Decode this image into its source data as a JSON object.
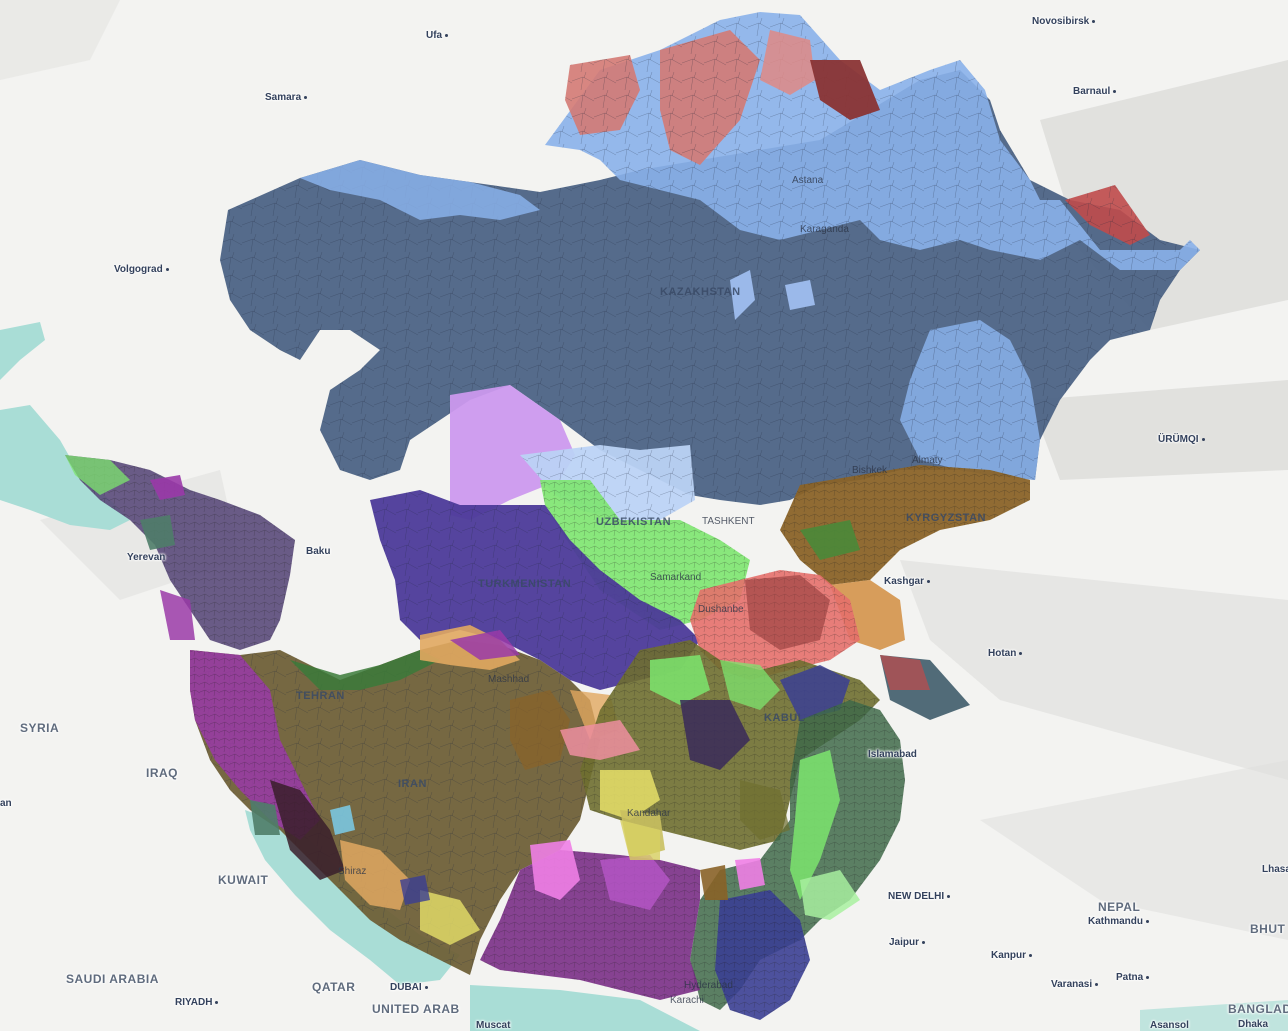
{
  "map": {
    "colors": {
      "land": "#f3f3f1",
      "water": "#a9ddd6",
      "mountain": "#dcdcda",
      "kz_dark": "#4c6385",
      "kz_light": "#8ab1ea",
      "kz_red": "#d47a74",
      "uz_pink": "#cc99ee",
      "uz_light": "#bcd3f5",
      "tm_purple": "#4c3a99",
      "green": "#7de66f",
      "red_pink": "#e6706b",
      "brown": "#8a6328",
      "olive": "#6f6038",
      "magenta": "#9a3aa8",
      "teal": "#4f7d69",
      "orange": "#e1a860",
      "yellow": "#e7e16a",
      "navy": "#3b3f94",
      "pink": "#ef7fe6"
    },
    "labels": {
      "ufa": "Ufa",
      "novosibirsk": "Novosibirsk",
      "samara": "Samara",
      "barnaul": "Barnaul",
      "volgograd": "Volgograd",
      "astana": "Astana",
      "karaganda": "Karaganda",
      "kazakhstan": "KAZAKHSTAN",
      "urumqi": "ÜRÜMQI",
      "almaty": "Almaty",
      "bishkek": "Bishkek",
      "uzbekistan": "UZBEKISTAN",
      "tashkent": "TASHKENT",
      "kyrgyzstan": "KYRGYZSTAN",
      "yerevan": "Yerevan",
      "baku": "Baku",
      "turkmenistan": "TURKMENISTAN",
      "samarkand": "Samarkand",
      "dushanbe": "Dushanbe",
      "kashgar": "Kashgar",
      "hotan": "Hotan",
      "mashhad": "Mashhad",
      "tehran": "TEHRAN",
      "syria": "SYRIA",
      "iraq": "IRAQ",
      "iran": "IRAN",
      "kabul": "KABUL",
      "islamabad": "Islamabad",
      "kandahar": "Kandahar",
      "kuwait": "KUWAIT",
      "shiraz": "Shiraz",
      "new_delhi": "NEW DELHI",
      "nepal": "NEPAL",
      "kathmandu": "Kathmandu",
      "lhasa": "Lhasa",
      "bhutan": "BHUT",
      "jaipur": "Jaipur",
      "kanpur": "Kanpur",
      "varanasi": "Varanasi",
      "patna": "Patna",
      "saudi_arabia": "SAUDI ARABIA",
      "riyadh": "RIYADH",
      "qatar": "QATAR",
      "dubai": "DUBAI",
      "united_arab": "UNITED ARAB",
      "karachi": "Karachi",
      "hyderabad": "Hyderabad",
      "dhaka": "Dhaka",
      "bangladesh": "BANGLAD",
      "asansol": "Asansol",
      "muscat": "Muscat",
      "amman_edge": "an"
    }
  }
}
